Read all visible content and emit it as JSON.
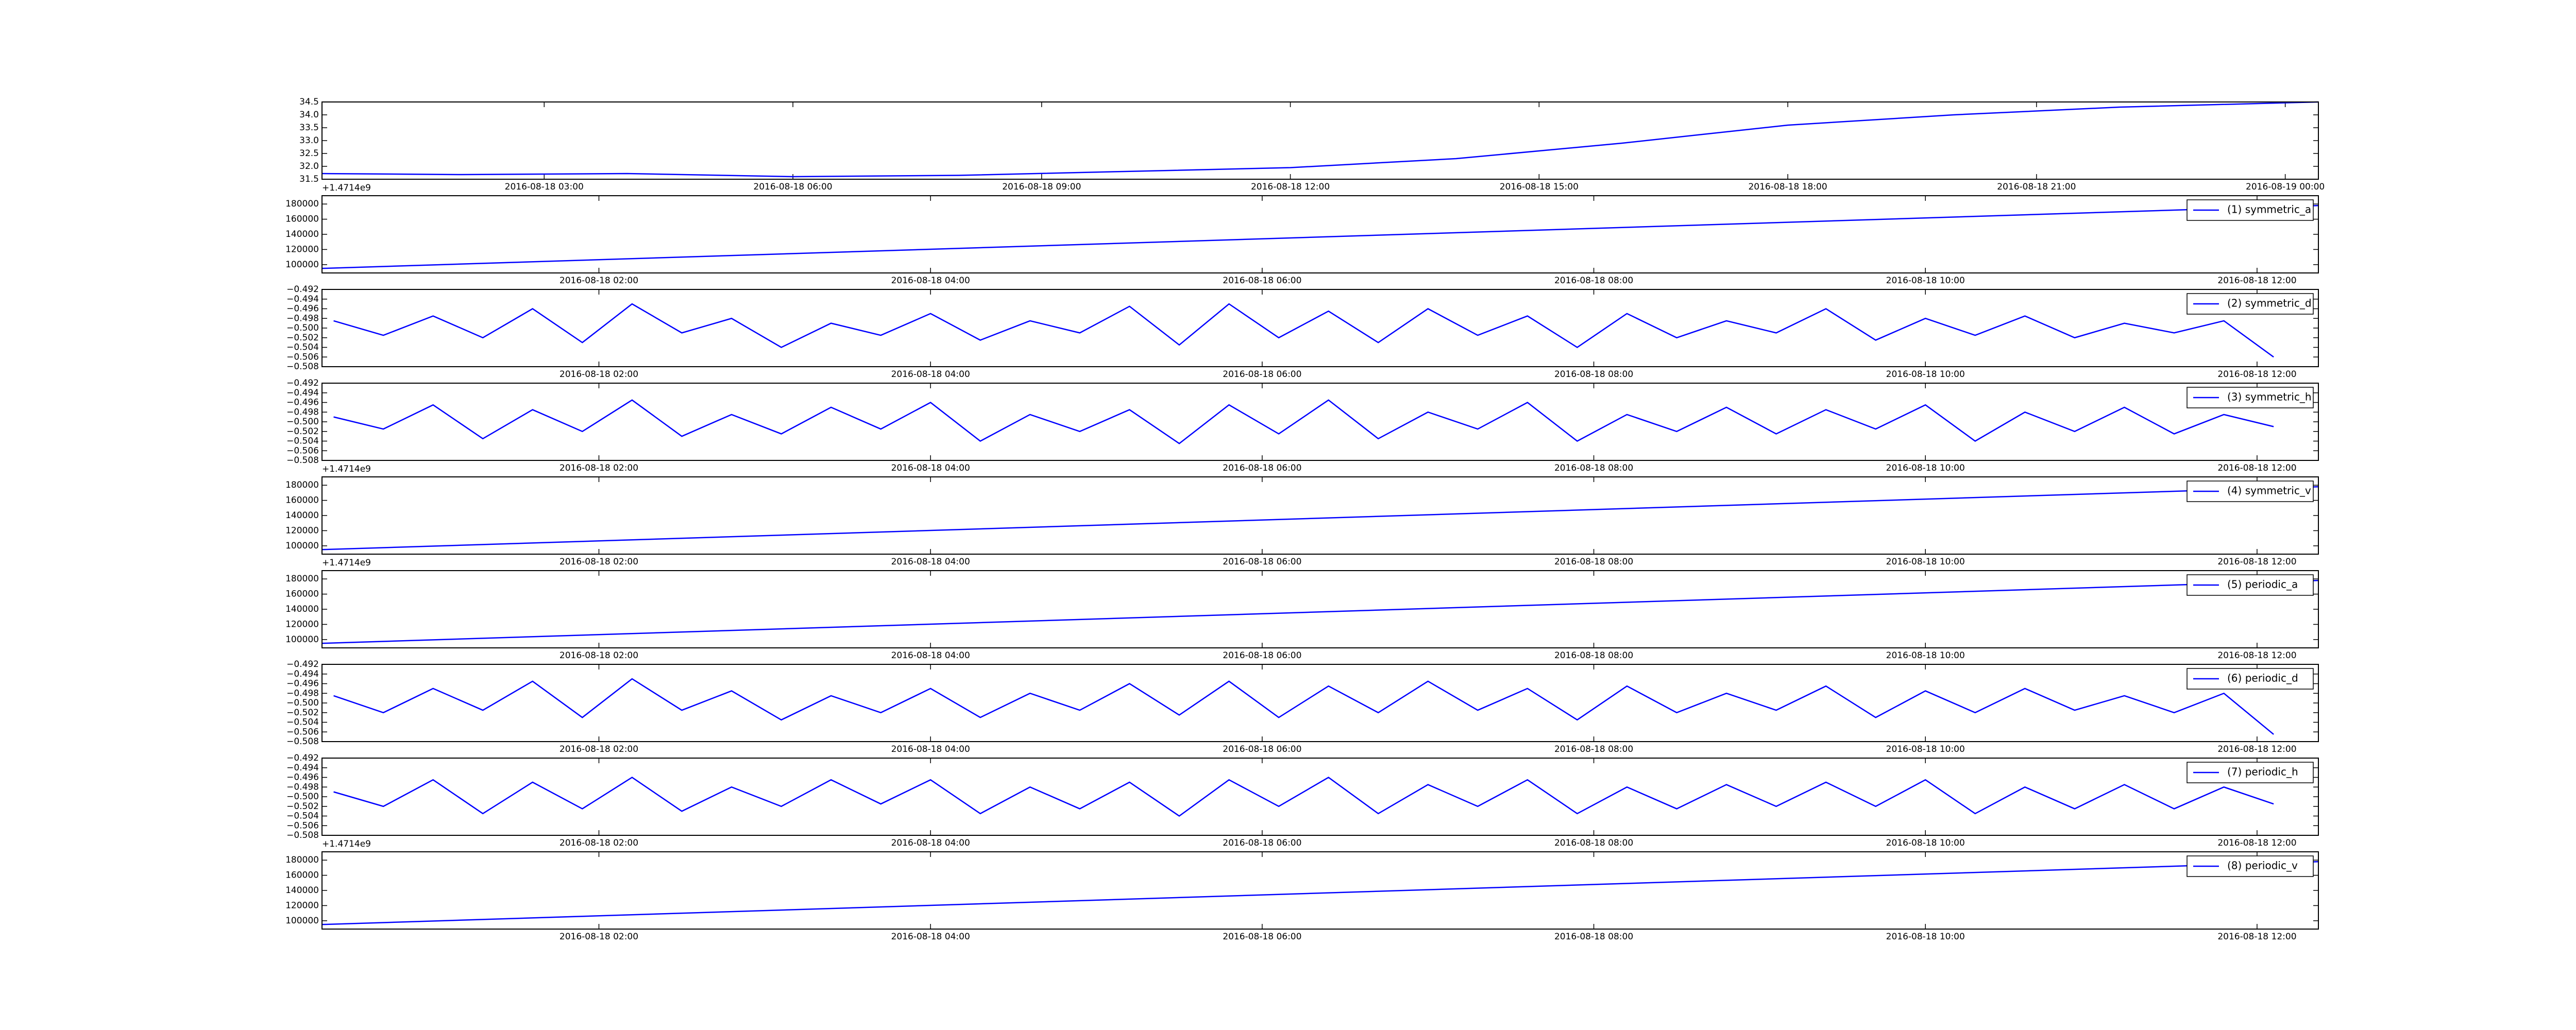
{
  "chart_data": [
    {
      "type": "line",
      "offset_text": "+1.4714e9",
      "x": [
        0.32,
        2,
        4,
        6,
        8,
        10,
        12,
        14,
        16,
        18,
        20,
        22,
        24.4
      ],
      "series": [
        {
          "color": "#0000ff",
          "values": [
            31.72,
            31.68,
            31.72,
            31.6,
            31.65,
            31.8,
            31.95,
            32.3,
            32.9,
            33.6,
            34.0,
            34.3,
            34.5
          ]
        }
      ],
      "xlim": [
        0.32,
        24.4
      ],
      "xticks": [
        {
          "value": 3,
          "label": "2016-08-18 03:00"
        },
        {
          "value": 6,
          "label": "2016-08-18 06:00"
        },
        {
          "value": 9,
          "label": "2016-08-18 09:00"
        },
        {
          "value": 12,
          "label": "2016-08-18 12:00"
        },
        {
          "value": 15,
          "label": "2016-08-18 15:00"
        },
        {
          "value": 18,
          "label": "2016-08-18 18:00"
        },
        {
          "value": 21,
          "label": "2016-08-18 21:00"
        },
        {
          "value": 24,
          "label": "2016-08-19 00:00"
        }
      ],
      "ylim": [
        31.5,
        34.5
      ],
      "yticks": [
        31.5,
        {
          "value": 32,
          "label": "32.0"
        },
        32.5,
        {
          "value": 33,
          "label": "33.0"
        },
        33.5,
        {
          "value": 34,
          "label": "34.0"
        },
        34.5
      ]
    },
    {
      "type": "line",
      "legend": "upper right",
      "x": [
        0.33,
        12.37
      ],
      "series": [
        {
          "name": "(1) symmetric_a",
          "color": "#0000ff",
          "values": [
            95000,
            178000
          ]
        }
      ],
      "xlim": [
        0.33,
        12.37
      ],
      "xticks": [
        {
          "value": 2,
          "label": "2016-08-18 02:00"
        },
        {
          "value": 4,
          "label": "2016-08-18 04:00"
        },
        {
          "value": 6,
          "label": "2016-08-18 06:00"
        },
        {
          "value": 8,
          "label": "2016-08-18 08:00"
        },
        {
          "value": 10,
          "label": "2016-08-18 10:00"
        },
        {
          "value": 12,
          "label": "2016-08-18 12:00"
        }
      ],
      "ylim": [
        89000,
        191000
      ],
      "yticks": [
        100000,
        120000,
        140000,
        160000,
        180000
      ]
    },
    {
      "type": "line",
      "legend": "upper right",
      "x": [
        0.4,
        0.7,
        1.0,
        1.3,
        1.6,
        1.9,
        2.2,
        2.5,
        2.8,
        3.1,
        3.4,
        3.7,
        4.0,
        4.3,
        4.6,
        4.9,
        5.2,
        5.5,
        5.8,
        6.1,
        6.4,
        6.7,
        7.0,
        7.3,
        7.6,
        7.9,
        8.2,
        8.5,
        8.8,
        9.1,
        9.4,
        9.7,
        10.0,
        10.3,
        10.6,
        10.9,
        11.2,
        11.5,
        11.8,
        12.1
      ],
      "series": [
        {
          "name": "(2) symmetric_d",
          "color": "#0000ff",
          "values": [
            -0.4985,
            -0.5015,
            -0.4975,
            -0.502,
            -0.496,
            -0.503,
            -0.495,
            -0.501,
            -0.498,
            -0.504,
            -0.499,
            -0.5015,
            -0.497,
            -0.5025,
            -0.4985,
            -0.501,
            -0.4955,
            -0.5035,
            -0.495,
            -0.502,
            -0.4965,
            -0.503,
            -0.496,
            -0.5015,
            -0.4975,
            -0.504,
            -0.497,
            -0.502,
            -0.4985,
            -0.501,
            -0.496,
            -0.5025,
            -0.498,
            -0.5015,
            -0.4975,
            -0.502,
            -0.499,
            -0.501,
            -0.4985,
            -0.506
          ]
        }
      ],
      "xlim": [
        0.33,
        12.37
      ],
      "xticks": [
        {
          "value": 2,
          "label": "2016-08-18 02:00"
        },
        {
          "value": 4,
          "label": "2016-08-18 04:00"
        },
        {
          "value": 6,
          "label": "2016-08-18 06:00"
        },
        {
          "value": 8,
          "label": "2016-08-18 08:00"
        },
        {
          "value": 10,
          "label": "2016-08-18 10:00"
        },
        {
          "value": 12,
          "label": "2016-08-18 12:00"
        }
      ],
      "ylim": [
        -0.508,
        -0.492
      ],
      "yticks": [
        {
          "value": -0.508,
          "label": "−0.508"
        },
        {
          "value": -0.506,
          "label": "−0.506"
        },
        {
          "value": -0.504,
          "label": "−0.504"
        },
        {
          "value": -0.502,
          "label": "−0.502"
        },
        {
          "value": -0.5,
          "label": "−0.500"
        },
        {
          "value": -0.498,
          "label": "−0.498"
        },
        {
          "value": -0.496,
          "label": "−0.496"
        },
        {
          "value": -0.494,
          "label": "−0.494"
        },
        {
          "value": -0.492,
          "label": "−0.492"
        }
      ]
    },
    {
      "type": "line",
      "legend": "upper right",
      "offset_text": "+1.4714e9",
      "x": [
        0.4,
        0.7,
        1.0,
        1.3,
        1.6,
        1.9,
        2.2,
        2.5,
        2.8,
        3.1,
        3.4,
        3.7,
        4.0,
        4.3,
        4.6,
        4.9,
        5.2,
        5.5,
        5.8,
        6.1,
        6.4,
        6.7,
        7.0,
        7.3,
        7.6,
        7.9,
        8.2,
        8.5,
        8.8,
        9.1,
        9.4,
        9.7,
        10.0,
        10.3,
        10.6,
        10.9,
        11.2,
        11.5,
        11.8,
        12.1
      ],
      "series": [
        {
          "name": "(3) symmetric_h",
          "color": "#0000ff",
          "values": [
            -0.499,
            -0.5015,
            -0.4965,
            -0.5035,
            -0.4975,
            -0.502,
            -0.4955,
            -0.503,
            -0.4985,
            -0.5025,
            -0.497,
            -0.5015,
            -0.496,
            -0.504,
            -0.4985,
            -0.502,
            -0.4975,
            -0.5045,
            -0.4965,
            -0.5025,
            -0.4955,
            -0.5035,
            -0.498,
            -0.5015,
            -0.496,
            -0.504,
            -0.4985,
            -0.502,
            -0.497,
            -0.5025,
            -0.4975,
            -0.5015,
            -0.4965,
            -0.504,
            -0.498,
            -0.502,
            -0.497,
            -0.5025,
            -0.4985,
            -0.501
          ]
        }
      ],
      "xlim": [
        0.33,
        12.37
      ],
      "xticks": [
        {
          "value": 2,
          "label": "2016-08-18 02:00"
        },
        {
          "value": 4,
          "label": "2016-08-18 04:00"
        },
        {
          "value": 6,
          "label": "2016-08-18 06:00"
        },
        {
          "value": 8,
          "label": "2016-08-18 08:00"
        },
        {
          "value": 10,
          "label": "2016-08-18 10:00"
        },
        {
          "value": 12,
          "label": "2016-08-18 12:00"
        }
      ],
      "ylim": [
        -0.508,
        -0.492
      ],
      "yticks": [
        {
          "value": -0.508,
          "label": "−0.508"
        },
        {
          "value": -0.506,
          "label": "−0.506"
        },
        {
          "value": -0.504,
          "label": "−0.504"
        },
        {
          "value": -0.502,
          "label": "−0.502"
        },
        {
          "value": -0.5,
          "label": "−0.500"
        },
        {
          "value": -0.498,
          "label": "−0.498"
        },
        {
          "value": -0.496,
          "label": "−0.496"
        },
        {
          "value": -0.494,
          "label": "−0.494"
        },
        {
          "value": -0.492,
          "label": "−0.492"
        }
      ]
    },
    {
      "type": "line",
      "legend": "upper right",
      "offset_text": "+1.4714e9",
      "x": [
        0.33,
        12.37
      ],
      "series": [
        {
          "name": "(4) symmetric_v",
          "color": "#0000ff",
          "values": [
            95000,
            178000
          ]
        }
      ],
      "xlim": [
        0.33,
        12.37
      ],
      "xticks": [
        {
          "value": 2,
          "label": "2016-08-18 02:00"
        },
        {
          "value": 4,
          "label": "2016-08-18 04:00"
        },
        {
          "value": 6,
          "label": "2016-08-18 06:00"
        },
        {
          "value": 8,
          "label": "2016-08-18 08:00"
        },
        {
          "value": 10,
          "label": "2016-08-18 10:00"
        },
        {
          "value": 12,
          "label": "2016-08-18 12:00"
        }
      ],
      "ylim": [
        89000,
        191000
      ],
      "yticks": [
        100000,
        120000,
        140000,
        160000,
        180000
      ]
    },
    {
      "type": "line",
      "legend": "upper right",
      "x": [
        0.33,
        12.37
      ],
      "series": [
        {
          "name": "(5) periodic_a",
          "color": "#0000ff",
          "values": [
            95000,
            178000
          ]
        }
      ],
      "xlim": [
        0.33,
        12.37
      ],
      "xticks": [
        {
          "value": 2,
          "label": "2016-08-18 02:00"
        },
        {
          "value": 4,
          "label": "2016-08-18 04:00"
        },
        {
          "value": 6,
          "label": "2016-08-18 06:00"
        },
        {
          "value": 8,
          "label": "2016-08-18 08:00"
        },
        {
          "value": 10,
          "label": "2016-08-18 10:00"
        },
        {
          "value": 12,
          "label": "2016-08-18 12:00"
        }
      ],
      "ylim": [
        89000,
        191000
      ],
      "yticks": [
        100000,
        120000,
        140000,
        160000,
        180000
      ]
    },
    {
      "type": "line",
      "legend": "upper right",
      "x": [
        0.4,
        0.7,
        1.0,
        1.3,
        1.6,
        1.9,
        2.2,
        2.5,
        2.8,
        3.1,
        3.4,
        3.7,
        4.0,
        4.3,
        4.6,
        4.9,
        5.2,
        5.5,
        5.8,
        6.1,
        6.4,
        6.7,
        7.0,
        7.3,
        7.6,
        7.9,
        8.2,
        8.5,
        8.8,
        9.1,
        9.4,
        9.7,
        10.0,
        10.3,
        10.6,
        10.9,
        11.2,
        11.5,
        11.8,
        12.1
      ],
      "series": [
        {
          "name": "(6) periodic_d",
          "color": "#0000ff",
          "values": [
            -0.4985,
            -0.502,
            -0.497,
            -0.5015,
            -0.4955,
            -0.503,
            -0.495,
            -0.5015,
            -0.4975,
            -0.5035,
            -0.4985,
            -0.502,
            -0.497,
            -0.503,
            -0.498,
            -0.5015,
            -0.496,
            -0.5025,
            -0.4955,
            -0.503,
            -0.4965,
            -0.502,
            -0.4955,
            -0.5015,
            -0.497,
            -0.5035,
            -0.4965,
            -0.502,
            -0.498,
            -0.5015,
            -0.4965,
            -0.503,
            -0.4975,
            -0.502,
            -0.497,
            -0.5015,
            -0.4985,
            -0.502,
            -0.498,
            -0.5065
          ]
        }
      ],
      "xlim": [
        0.33,
        12.37
      ],
      "xticks": [
        {
          "value": 2,
          "label": "2016-08-18 02:00"
        },
        {
          "value": 4,
          "label": "2016-08-18 04:00"
        },
        {
          "value": 6,
          "label": "2016-08-18 06:00"
        },
        {
          "value": 8,
          "label": "2016-08-18 08:00"
        },
        {
          "value": 10,
          "label": "2016-08-18 10:00"
        },
        {
          "value": 12,
          "label": "2016-08-18 12:00"
        }
      ],
      "ylim": [
        -0.508,
        -0.492
      ],
      "yticks": [
        {
          "value": -0.508,
          "label": "−0.508"
        },
        {
          "value": -0.506,
          "label": "−0.506"
        },
        {
          "value": -0.504,
          "label": "−0.504"
        },
        {
          "value": -0.502,
          "label": "−0.502"
        },
        {
          "value": -0.5,
          "label": "−0.500"
        },
        {
          "value": -0.498,
          "label": "−0.498"
        },
        {
          "value": -0.496,
          "label": "−0.496"
        },
        {
          "value": -0.494,
          "label": "−0.494"
        },
        {
          "value": -0.492,
          "label": "−0.492"
        }
      ]
    },
    {
      "type": "line",
      "legend": "upper right",
      "offset_text": "+1.4714e9",
      "x": [
        0.4,
        0.7,
        1.0,
        1.3,
        1.6,
        1.9,
        2.2,
        2.5,
        2.8,
        3.1,
        3.4,
        3.7,
        4.0,
        4.3,
        4.6,
        4.9,
        5.2,
        5.5,
        5.8,
        6.1,
        6.4,
        6.7,
        7.0,
        7.3,
        7.6,
        7.9,
        8.2,
        8.5,
        8.8,
        9.1,
        9.4,
        9.7,
        10.0,
        10.3,
        10.6,
        10.9,
        11.2,
        11.5,
        11.8,
        12.1
      ],
      "series": [
        {
          "name": "(7) periodic_h",
          "color": "#0000ff",
          "values": [
            -0.499,
            -0.502,
            -0.4965,
            -0.5035,
            -0.497,
            -0.5025,
            -0.496,
            -0.503,
            -0.498,
            -0.502,
            -0.4965,
            -0.5015,
            -0.4965,
            -0.5035,
            -0.498,
            -0.5025,
            -0.497,
            -0.504,
            -0.4965,
            -0.502,
            -0.496,
            -0.5035,
            -0.4975,
            -0.502,
            -0.4965,
            -0.5035,
            -0.498,
            -0.5025,
            -0.4975,
            -0.502,
            -0.497,
            -0.502,
            -0.4965,
            -0.5035,
            -0.498,
            -0.5025,
            -0.4975,
            -0.5025,
            -0.498,
            -0.5015
          ]
        }
      ],
      "xlim": [
        0.33,
        12.37
      ],
      "xticks": [
        {
          "value": 2,
          "label": "2016-08-18 02:00"
        },
        {
          "value": 4,
          "label": "2016-08-18 04:00"
        },
        {
          "value": 6,
          "label": "2016-08-18 06:00"
        },
        {
          "value": 8,
          "label": "2016-08-18 08:00"
        },
        {
          "value": 10,
          "label": "2016-08-18 10:00"
        },
        {
          "value": 12,
          "label": "2016-08-18 12:00"
        }
      ],
      "ylim": [
        -0.508,
        -0.492
      ],
      "yticks": [
        {
          "value": -0.508,
          "label": "−0.508"
        },
        {
          "value": -0.506,
          "label": "−0.506"
        },
        {
          "value": -0.504,
          "label": "−0.504"
        },
        {
          "value": -0.502,
          "label": "−0.502"
        },
        {
          "value": -0.5,
          "label": "−0.500"
        },
        {
          "value": -0.498,
          "label": "−0.498"
        },
        {
          "value": -0.496,
          "label": "−0.496"
        },
        {
          "value": -0.494,
          "label": "−0.494"
        },
        {
          "value": -0.492,
          "label": "−0.492"
        }
      ]
    },
    {
      "type": "line",
      "legend": "upper right",
      "x": [
        0.33,
        12.37
      ],
      "series": [
        {
          "name": "(8) periodic_v",
          "color": "#0000ff",
          "values": [
            95000,
            178000
          ]
        }
      ],
      "xlim": [
        0.33,
        12.37
      ],
      "xticks": [
        {
          "value": 2,
          "label": "2016-08-18 02:00"
        },
        {
          "value": 4,
          "label": "2016-08-18 04:00"
        },
        {
          "value": 6,
          "label": "2016-08-18 06:00"
        },
        {
          "value": 8,
          "label": "2016-08-18 08:00"
        },
        {
          "value": 10,
          "label": "2016-08-18 10:00"
        },
        {
          "value": 12,
          "label": "2016-08-18 12:00"
        }
      ],
      "ylim": [
        89000,
        191000
      ],
      "yticks": [
        100000,
        120000,
        140000,
        160000,
        180000
      ]
    }
  ]
}
